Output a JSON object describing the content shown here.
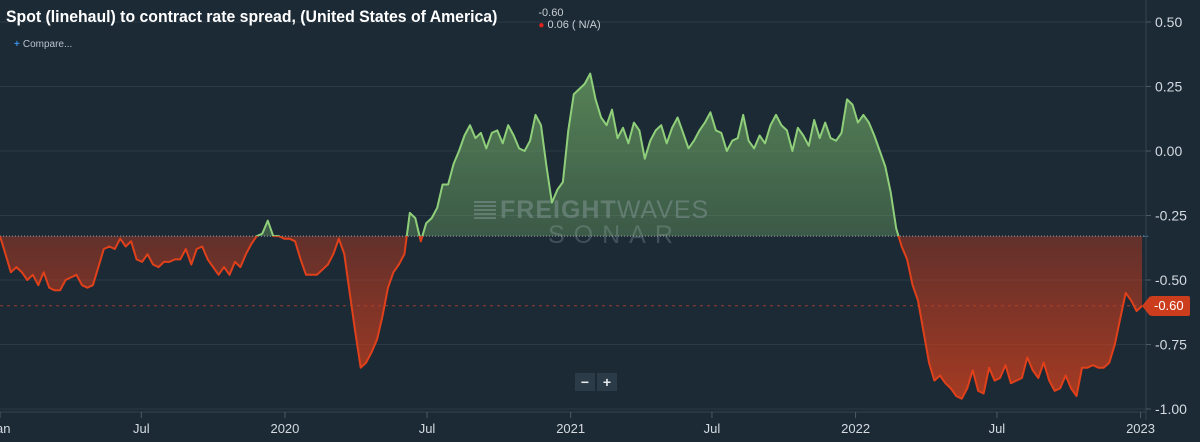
{
  "header": {
    "title": "Spot (linehaul) to contract rate spread, (United States of America)",
    "last_value": "-0.60",
    "change_text": "0.06 ( N/A)"
  },
  "compare_label": "Compare...",
  "watermark": {
    "brand_bold": "FREIGHT",
    "brand_light": "WAVES",
    "sub": "SONAR"
  },
  "zoom": {
    "minus": "−",
    "plus": "+"
  },
  "last_badge": "-0.60",
  "colors": {
    "background": "#1c2a36",
    "positive_line": "#8fcf7a",
    "negative_line": "#e0401a",
    "grid": "#2b3a47",
    "axis_text": "#d4dae0"
  },
  "icons": {
    "compare": "plus-icon"
  },
  "chart_data": {
    "type": "area",
    "title": "Spot (linehaul) to contract rate spread, (United States of America)",
    "ylabel": "",
    "xlabel": "",
    "ylim": [
      -1.0,
      0.55
    ],
    "y_ticks": [
      0.5,
      0.25,
      0.0,
      -0.25,
      -0.5,
      -0.75,
      -1.0
    ],
    "y_tick_labels": [
      "0.50",
      "0.25",
      "0.00",
      "-0.25",
      "-0.50",
      "-0.75",
      "-1.00"
    ],
    "x_ticks": [
      {
        "label": "Jan",
        "date": "2019-01-01"
      },
      {
        "label": "Jul",
        "date": "2019-07-01"
      },
      {
        "label": "2020",
        "date": "2020-01-01"
      },
      {
        "label": "Jul",
        "date": "2020-07-01"
      },
      {
        "label": "2021",
        "date": "2021-01-01"
      },
      {
        "label": "Jul",
        "date": "2021-07-01"
      },
      {
        "label": "2022",
        "date": "2022-01-01"
      },
      {
        "label": "Jul",
        "date": "2022-07-01"
      },
      {
        "label": "2023",
        "date": "2023-01-01"
      }
    ],
    "x_range": [
      "2019-01-01",
      "2023-01-08"
    ],
    "baseline": -0.33,
    "last_value": -0.6,
    "grid": true,
    "series": [
      {
        "points": [
          [
            "2019-01-01",
            -0.33
          ],
          [
            "2019-01-08",
            -0.4
          ],
          [
            "2019-01-15",
            -0.47
          ],
          [
            "2019-01-22",
            -0.45
          ],
          [
            "2019-01-29",
            -0.47
          ],
          [
            "2019-02-05",
            -0.5
          ],
          [
            "2019-02-12",
            -0.48
          ],
          [
            "2019-02-19",
            -0.52
          ],
          [
            "2019-02-26",
            -0.47
          ],
          [
            "2019-03-05",
            -0.53
          ],
          [
            "2019-03-12",
            -0.54
          ],
          [
            "2019-03-19",
            -0.54
          ],
          [
            "2019-03-26",
            -0.5
          ],
          [
            "2019-04-02",
            -0.49
          ],
          [
            "2019-04-09",
            -0.48
          ],
          [
            "2019-04-16",
            -0.52
          ],
          [
            "2019-04-23",
            -0.53
          ],
          [
            "2019-04-30",
            -0.52
          ],
          [
            "2019-05-07",
            -0.45
          ],
          [
            "2019-05-14",
            -0.38
          ],
          [
            "2019-05-21",
            -0.37
          ],
          [
            "2019-05-28",
            -0.38
          ],
          [
            "2019-06-04",
            -0.34
          ],
          [
            "2019-06-11",
            -0.37
          ],
          [
            "2019-06-18",
            -0.35
          ],
          [
            "2019-06-25",
            -0.42
          ],
          [
            "2019-07-02",
            -0.43
          ],
          [
            "2019-07-09",
            -0.4
          ],
          [
            "2019-07-16",
            -0.44
          ],
          [
            "2019-07-23",
            -0.45
          ],
          [
            "2019-07-30",
            -0.43
          ],
          [
            "2019-08-06",
            -0.43
          ],
          [
            "2019-08-13",
            -0.42
          ],
          [
            "2019-08-20",
            -0.42
          ],
          [
            "2019-08-27",
            -0.38
          ],
          [
            "2019-09-03",
            -0.44
          ],
          [
            "2019-09-10",
            -0.38
          ],
          [
            "2019-09-17",
            -0.37
          ],
          [
            "2019-09-24",
            -0.42
          ],
          [
            "2019-10-01",
            -0.45
          ],
          [
            "2019-10-08",
            -0.48
          ],
          [
            "2019-10-15",
            -0.45
          ],
          [
            "2019-10-22",
            -0.48
          ],
          [
            "2019-10-29",
            -0.43
          ],
          [
            "2019-11-05",
            -0.45
          ],
          [
            "2019-11-12",
            -0.4
          ],
          [
            "2019-11-19",
            -0.36
          ],
          [
            "2019-11-26",
            -0.33
          ],
          [
            "2019-12-03",
            -0.32
          ],
          [
            "2019-12-10",
            -0.27
          ],
          [
            "2019-12-17",
            -0.33
          ],
          [
            "2019-12-24",
            -0.33
          ],
          [
            "2019-12-31",
            -0.34
          ],
          [
            "2020-01-07",
            -0.34
          ],
          [
            "2020-01-14",
            -0.35
          ],
          [
            "2020-01-21",
            -0.42
          ],
          [
            "2020-01-28",
            -0.48
          ],
          [
            "2020-02-04",
            -0.48
          ],
          [
            "2020-02-11",
            -0.48
          ],
          [
            "2020-02-18",
            -0.46
          ],
          [
            "2020-02-25",
            -0.44
          ],
          [
            "2020-03-03",
            -0.4
          ],
          [
            "2020-03-10",
            -0.34
          ],
          [
            "2020-03-17",
            -0.4
          ],
          [
            "2020-03-24",
            -0.55
          ],
          [
            "2020-03-31",
            -0.7
          ],
          [
            "2020-04-07",
            -0.84
          ],
          [
            "2020-04-14",
            -0.82
          ],
          [
            "2020-04-21",
            -0.78
          ],
          [
            "2020-04-28",
            -0.73
          ],
          [
            "2020-05-05",
            -0.64
          ],
          [
            "2020-05-12",
            -0.53
          ],
          [
            "2020-05-19",
            -0.47
          ],
          [
            "2020-05-26",
            -0.44
          ],
          [
            "2020-06-02",
            -0.4
          ],
          [
            "2020-06-09",
            -0.24
          ],
          [
            "2020-06-16",
            -0.26
          ],
          [
            "2020-06-23",
            -0.35
          ],
          [
            "2020-06-30",
            -0.28
          ],
          [
            "2020-07-07",
            -0.26
          ],
          [
            "2020-07-14",
            -0.22
          ],
          [
            "2020-07-21",
            -0.13
          ],
          [
            "2020-07-28",
            -0.13
          ],
          [
            "2020-08-04",
            -0.05
          ],
          [
            "2020-08-11",
            0.0
          ],
          [
            "2020-08-18",
            0.06
          ],
          [
            "2020-08-25",
            0.1
          ],
          [
            "2020-09-01",
            0.05
          ],
          [
            "2020-09-08",
            0.07
          ],
          [
            "2020-09-15",
            0.01
          ],
          [
            "2020-09-22",
            0.07
          ],
          [
            "2020-09-29",
            0.08
          ],
          [
            "2020-10-06",
            0.03
          ],
          [
            "2020-10-13",
            0.1
          ],
          [
            "2020-10-20",
            0.06
          ],
          [
            "2020-10-27",
            0.01
          ],
          [
            "2020-11-03",
            0.0
          ],
          [
            "2020-11-10",
            0.04
          ],
          [
            "2020-11-17",
            0.14
          ],
          [
            "2020-11-24",
            0.1
          ],
          [
            "2020-12-01",
            -0.06
          ],
          [
            "2020-12-08",
            -0.2
          ],
          [
            "2020-12-15",
            -0.15
          ],
          [
            "2020-12-22",
            -0.12
          ],
          [
            "2020-12-29",
            0.08
          ],
          [
            "2021-01-05",
            0.22
          ],
          [
            "2021-01-12",
            0.24
          ],
          [
            "2021-01-19",
            0.26
          ],
          [
            "2021-01-26",
            0.3
          ],
          [
            "2021-02-02",
            0.2
          ],
          [
            "2021-02-09",
            0.13
          ],
          [
            "2021-02-16",
            0.1
          ],
          [
            "2021-02-23",
            0.16
          ],
          [
            "2021-03-02",
            0.05
          ],
          [
            "2021-03-09",
            0.09
          ],
          [
            "2021-03-16",
            0.03
          ],
          [
            "2021-03-23",
            0.11
          ],
          [
            "2021-03-30",
            0.08
          ],
          [
            "2021-04-06",
            -0.03
          ],
          [
            "2021-04-13",
            0.04
          ],
          [
            "2021-04-20",
            0.08
          ],
          [
            "2021-04-27",
            0.1
          ],
          [
            "2021-05-04",
            0.03
          ],
          [
            "2021-05-11",
            0.09
          ],
          [
            "2021-05-18",
            0.13
          ],
          [
            "2021-05-25",
            0.07
          ],
          [
            "2021-06-01",
            0.01
          ],
          [
            "2021-06-08",
            0.04
          ],
          [
            "2021-06-15",
            0.08
          ],
          [
            "2021-06-22",
            0.11
          ],
          [
            "2021-06-29",
            0.15
          ],
          [
            "2021-07-06",
            0.08
          ],
          [
            "2021-07-13",
            0.07
          ],
          [
            "2021-07-20",
            0.0
          ],
          [
            "2021-07-27",
            0.04
          ],
          [
            "2021-08-03",
            0.05
          ],
          [
            "2021-08-10",
            0.14
          ],
          [
            "2021-08-17",
            0.04
          ],
          [
            "2021-08-24",
            0.01
          ],
          [
            "2021-08-31",
            0.06
          ],
          [
            "2021-09-07",
            0.03
          ],
          [
            "2021-09-14",
            0.1
          ],
          [
            "2021-09-21",
            0.14
          ],
          [
            "2021-09-28",
            0.1
          ],
          [
            "2021-10-05",
            0.08
          ],
          [
            "2021-10-12",
            0.0
          ],
          [
            "2021-10-19",
            0.09
          ],
          [
            "2021-10-26",
            0.06
          ],
          [
            "2021-11-02",
            0.02
          ],
          [
            "2021-11-09",
            0.12
          ],
          [
            "2021-11-16",
            0.05
          ],
          [
            "2021-11-23",
            0.11
          ],
          [
            "2021-11-30",
            0.05
          ],
          [
            "2021-12-07",
            0.04
          ],
          [
            "2021-12-14",
            0.07
          ],
          [
            "2021-12-21",
            0.2
          ],
          [
            "2021-12-28",
            0.18
          ],
          [
            "2022-01-04",
            0.11
          ],
          [
            "2022-01-11",
            0.14
          ],
          [
            "2022-01-18",
            0.11
          ],
          [
            "2022-01-25",
            0.06
          ],
          [
            "2022-02-01",
            0.0
          ],
          [
            "2022-02-08",
            -0.06
          ],
          [
            "2022-02-15",
            -0.16
          ],
          [
            "2022-02-22",
            -0.3
          ],
          [
            "2022-03-01",
            -0.37
          ],
          [
            "2022-03-08",
            -0.42
          ],
          [
            "2022-03-15",
            -0.52
          ],
          [
            "2022-03-22",
            -0.58
          ],
          [
            "2022-03-29",
            -0.7
          ],
          [
            "2022-04-05",
            -0.82
          ],
          [
            "2022-04-12",
            -0.89
          ],
          [
            "2022-04-19",
            -0.87
          ],
          [
            "2022-04-26",
            -0.9
          ],
          [
            "2022-05-03",
            -0.92
          ],
          [
            "2022-05-10",
            -0.95
          ],
          [
            "2022-05-17",
            -0.96
          ],
          [
            "2022-05-24",
            -0.92
          ],
          [
            "2022-05-31",
            -0.85
          ],
          [
            "2022-06-07",
            -0.93
          ],
          [
            "2022-06-14",
            -0.94
          ],
          [
            "2022-06-21",
            -0.84
          ],
          [
            "2022-06-28",
            -0.89
          ],
          [
            "2022-07-05",
            -0.88
          ],
          [
            "2022-07-12",
            -0.83
          ],
          [
            "2022-07-19",
            -0.9
          ],
          [
            "2022-07-26",
            -0.89
          ],
          [
            "2022-08-02",
            -0.88
          ],
          [
            "2022-08-09",
            -0.8
          ],
          [
            "2022-08-16",
            -0.85
          ],
          [
            "2022-08-23",
            -0.88
          ],
          [
            "2022-08-30",
            -0.82
          ],
          [
            "2022-09-06",
            -0.89
          ],
          [
            "2022-09-13",
            -0.93
          ],
          [
            "2022-09-20",
            -0.92
          ],
          [
            "2022-09-27",
            -0.87
          ],
          [
            "2022-10-04",
            -0.92
          ],
          [
            "2022-10-11",
            -0.95
          ],
          [
            "2022-10-18",
            -0.84
          ],
          [
            "2022-10-25",
            -0.84
          ],
          [
            "2022-11-01",
            -0.83
          ],
          [
            "2022-11-08",
            -0.84
          ],
          [
            "2022-11-15",
            -0.84
          ],
          [
            "2022-11-22",
            -0.82
          ],
          [
            "2022-11-29",
            -0.75
          ],
          [
            "2022-12-06",
            -0.65
          ],
          [
            "2022-12-13",
            -0.55
          ],
          [
            "2022-12-20",
            -0.58
          ],
          [
            "2022-12-27",
            -0.62
          ],
          [
            "2023-01-03",
            -0.6
          ]
        ]
      }
    ]
  }
}
